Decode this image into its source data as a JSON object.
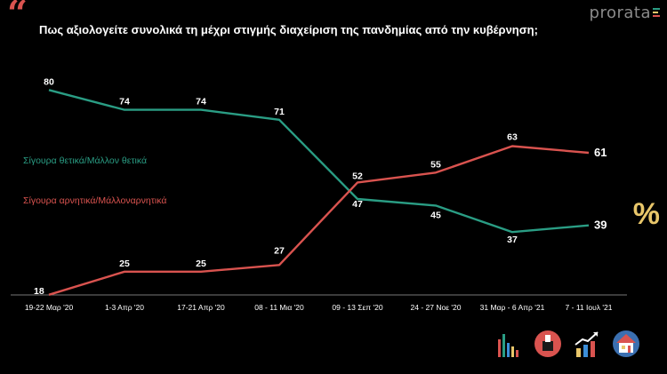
{
  "header": {
    "quote_icon": "quote-icon",
    "title": "Πως αξιολογείτε συνολικά τη μέχρι στιγμής διαχείριση της πανδημίας από την κυβέρνηση;",
    "logo": "prorata"
  },
  "colors": {
    "background": "#000000",
    "positive": "#2a9d84",
    "negative": "#d9534f",
    "accent": "#e8c66a",
    "axis": "#777777"
  },
  "chart_data": {
    "type": "line",
    "categories": [
      "19-22 Μαρ '20",
      "1-3 Απρ '20",
      "17-21 Απρ '20",
      "08 - 11 Μια '20",
      "09 - 13 Σεπ '20",
      "24 - 27 Νοε '20",
      "31 Μαρ - 6 Απρ '21",
      "7 - 11 Ιουλ '21"
    ],
    "series": [
      {
        "name": "Σίγουρα θετικά/Μάλλον θετικά",
        "values": [
          80,
          74,
          74,
          71,
          47,
          45,
          37,
          39
        ]
      },
      {
        "name": "Σίγουρα αρνητικά/Μάλλοναρνητικά",
        "values": [
          18,
          25,
          25,
          27,
          52,
          55,
          63,
          61
        ]
      }
    ],
    "ylim": [
      0,
      100
    ],
    "title": "Πως αξιολογείτε συνολικά τη μέχρι στιγμής διαχείριση της πανδημίας από την κυβέρνηση;",
    "xlabel": "",
    "ylabel": "",
    "grid": false,
    "legend": "left, inline with lines"
  },
  "decor": {
    "percent_symbol": "%",
    "icons": [
      "bar-chart-icon",
      "ballot-box-icon",
      "trend-up-icon",
      "house-icon"
    ]
  }
}
